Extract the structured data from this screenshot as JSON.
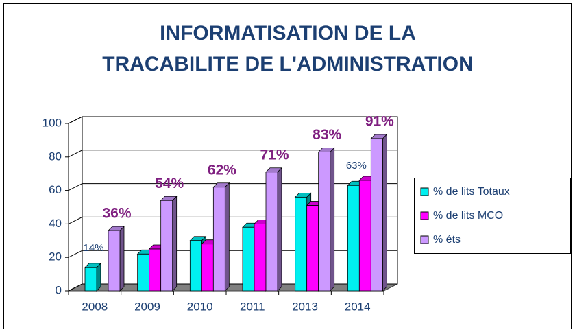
{
  "chart_data": {
    "type": "bar3d",
    "title": [
      "INFORMATISATION DE LA",
      "TRACABILITE DE L'ADMINISTRATION"
    ],
    "categories": [
      "2008",
      "2009",
      "2010",
      "2011",
      "2013",
      "2014"
    ],
    "series": [
      {
        "name": "% de lits Totaux",
        "color": "#00f0f0",
        "values": [
          14,
          22,
          30,
          38,
          56,
          63
        ],
        "value_labels": [
          "14%",
          null,
          null,
          null,
          null,
          "63%"
        ]
      },
      {
        "name": "% de lits MCO",
        "color": "#ff00ff",
        "values": [
          null,
          25,
          28,
          40,
          51,
          66
        ]
      },
      {
        "name": "% éts",
        "color": "#cc99ff",
        "values": [
          36,
          54,
          62,
          71,
          83,
          91
        ],
        "value_labels": [
          "36%",
          "54%",
          "62%",
          "71%",
          "83%",
          "91%"
        ]
      }
    ],
    "ylim": [
      0,
      100
    ],
    "yticks": [
      0,
      20,
      40,
      60,
      80,
      100
    ],
    "grid": true,
    "legend": "right"
  }
}
